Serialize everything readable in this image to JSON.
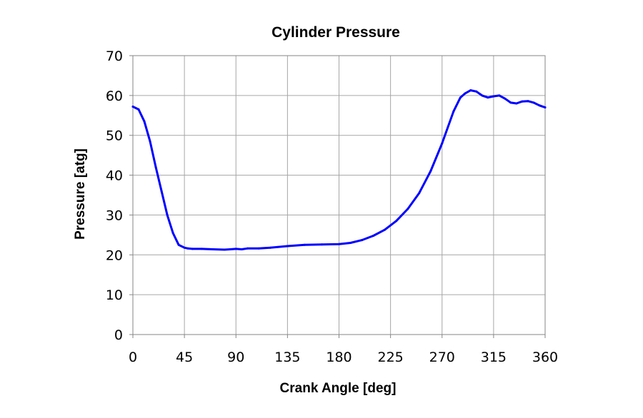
{
  "chart_data": {
    "type": "line",
    "title": "Cylinder Pressure",
    "xlabel": "Crank Angle  [deg]",
    "ylabel": "Pressure  [atg]",
    "xlim": [
      0,
      360
    ],
    "ylim": [
      0,
      70
    ],
    "xticks": [
      0,
      45,
      90,
      135,
      180,
      225,
      270,
      315,
      360
    ],
    "yticks": [
      0,
      10,
      20,
      30,
      40,
      50,
      60,
      70
    ],
    "grid": true,
    "legend": "none",
    "series": [
      {
        "color": "#0000ff",
        "x": [
          0,
          5,
          10,
          15,
          20,
          25,
          30,
          35,
          40,
          45,
          48,
          52,
          60,
          70,
          80,
          85,
          90,
          95,
          100,
          110,
          120,
          135,
          150,
          165,
          180,
          190,
          200,
          210,
          220,
          230,
          240,
          250,
          260,
          270,
          280,
          286,
          290,
          295,
          300,
          305,
          310,
          315,
          320,
          325,
          330,
          335,
          340,
          345,
          350,
          355,
          360
        ],
        "y": [
          57.2,
          56.5,
          53.5,
          48.5,
          42.0,
          36.0,
          30.0,
          25.5,
          22.5,
          21.8,
          21.6,
          21.5,
          21.5,
          21.4,
          21.3,
          21.4,
          21.5,
          21.4,
          21.6,
          21.6,
          21.8,
          22.2,
          22.5,
          22.6,
          22.7,
          23.0,
          23.7,
          24.8,
          26.3,
          28.5,
          31.5,
          35.5,
          41.0,
          48.0,
          56.0,
          59.5,
          60.5,
          61.3,
          61.0,
          60.0,
          59.5,
          59.8,
          60.0,
          59.2,
          58.2,
          58.0,
          58.5,
          58.6,
          58.2,
          57.5,
          57.0
        ]
      }
    ]
  }
}
